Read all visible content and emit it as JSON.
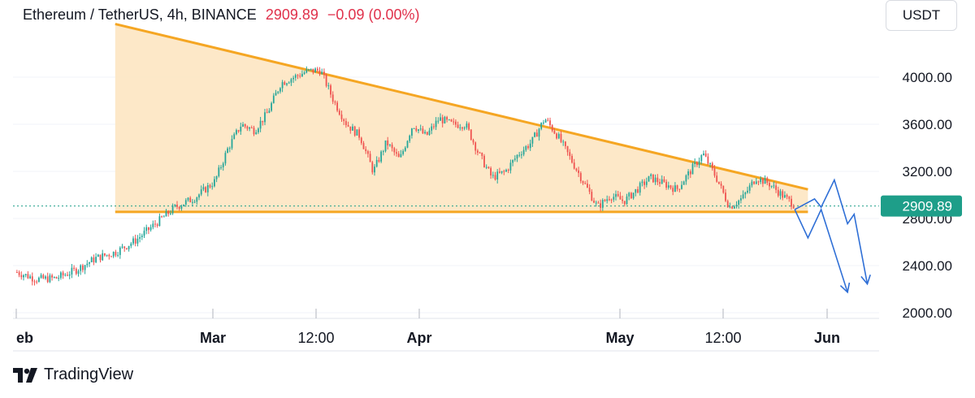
{
  "header": {
    "symbol": "Ethereum / TetherUS, 4h, BINANCE",
    "price": "2909.89",
    "change": "−0.09 (0.00%)",
    "price_color": "#e0314b"
  },
  "currency_button": "USDT",
  "branding": {
    "name": "TradingView",
    "icon": "tradingview-logo-icon"
  },
  "colors": {
    "up": "#26a69a",
    "down": "#ef5350",
    "triangle_fill": "#fde5c2",
    "trendline": "#f5a623",
    "arrow": "#2f6fd6",
    "price_tag": "#1e9e89"
  },
  "chart_data": {
    "type": "candlestick",
    "title": "",
    "xlabel": "",
    "ylabel": "",
    "ylim": [
      1900,
      4500
    ],
    "yticks": [
      "4000.00",
      "3600.00",
      "3200.00",
      "2800.00",
      "2400.00",
      "2000.00"
    ],
    "xticks": [
      "eb",
      "Mar",
      "12:00",
      "Apr",
      "May",
      "12:00",
      "Jun"
    ],
    "current_price": "2909.89",
    "price_path": [
      [
        "Feb 01",
        2350
      ],
      [
        "Feb 04",
        2290
      ],
      [
        "Feb 07",
        2300
      ],
      [
        "Feb 10",
        2370
      ],
      [
        "Feb 13",
        2470
      ],
      [
        "Feb 16",
        2520
      ],
      [
        "Feb 19",
        2620
      ],
      [
        "Feb 22",
        2760
      ],
      [
        "Feb 25",
        2900
      ],
      [
        "Feb 28",
        2980
      ],
      [
        "Mar 02",
        3120
      ],
      [
        "Mar 04",
        3400
      ],
      [
        "Mar 06",
        3600
      ],
      [
        "Mar 08",
        3550
      ],
      [
        "Mar 10",
        3700
      ],
      [
        "Mar 12",
        3950
      ],
      [
        "Mar 14",
        4000
      ],
      [
        "Mar 16",
        4050
      ],
      [
        "Mar 18",
        4060
      ],
      [
        "Mar 20",
        3800
      ],
      [
        "Mar 22",
        3600
      ],
      [
        "Mar 24",
        3500
      ],
      [
        "Mar 26",
        3200
      ],
      [
        "Mar 28",
        3450
      ],
      [
        "Mar 30",
        3300
      ],
      [
        "Apr 01",
        3600
      ],
      [
        "Apr 03",
        3500
      ],
      [
        "Apr 05",
        3650
      ],
      [
        "Apr 07",
        3600
      ],
      [
        "Apr 09",
        3600
      ],
      [
        "Apr 11",
        3350
      ],
      [
        "Apr 13",
        3150
      ],
      [
        "Apr 15",
        3200
      ],
      [
        "Apr 17",
        3350
      ],
      [
        "Apr 19",
        3450
      ],
      [
        "Apr 21",
        3650
      ],
      [
        "Apr 23",
        3500
      ],
      [
        "Apr 25",
        3300
      ],
      [
        "Apr 27",
        3100
      ],
      [
        "Apr 29",
        2900
      ],
      [
        "May 01",
        3000
      ],
      [
        "May 03",
        2950
      ],
      [
        "May 05",
        3050
      ],
      [
        "May 07",
        3150
      ],
      [
        "May 09",
        3100
      ],
      [
        "May 11",
        3050
      ],
      [
        "May 13",
        3200
      ],
      [
        "May 15",
        3350
      ],
      [
        "May 17",
        3150
      ],
      [
        "May 19",
        2900
      ],
      [
        "May 21",
        2980
      ],
      [
        "May 23",
        3150
      ],
      [
        "May 25",
        3100
      ],
      [
        "May 27",
        3000
      ],
      [
        "May 29",
        2910
      ]
    ],
    "triangle": {
      "resistance": [
        [
          "Feb 16",
          4450
        ],
        [
          "May 31",
          3050
        ]
      ],
      "support": [
        [
          "Feb 16",
          2860
        ],
        [
          "May 31",
          2860
        ]
      ]
    },
    "projection_paths": [
      [
        [
          "May 29",
          2880
        ],
        [
          "Jun 01",
          2970
        ],
        [
          "Jun 02",
          2900
        ],
        [
          "Jun 04",
          3130
        ],
        [
          "Jun 06",
          2760
        ],
        [
          "Jun 07",
          2840
        ],
        [
          "Jun 09",
          2250
        ]
      ],
      [
        [
          "May 29",
          2880
        ],
        [
          "May 31",
          2640
        ],
        [
          "Jun 02",
          2880
        ],
        [
          "Jun 06",
          2180
        ]
      ]
    ]
  }
}
